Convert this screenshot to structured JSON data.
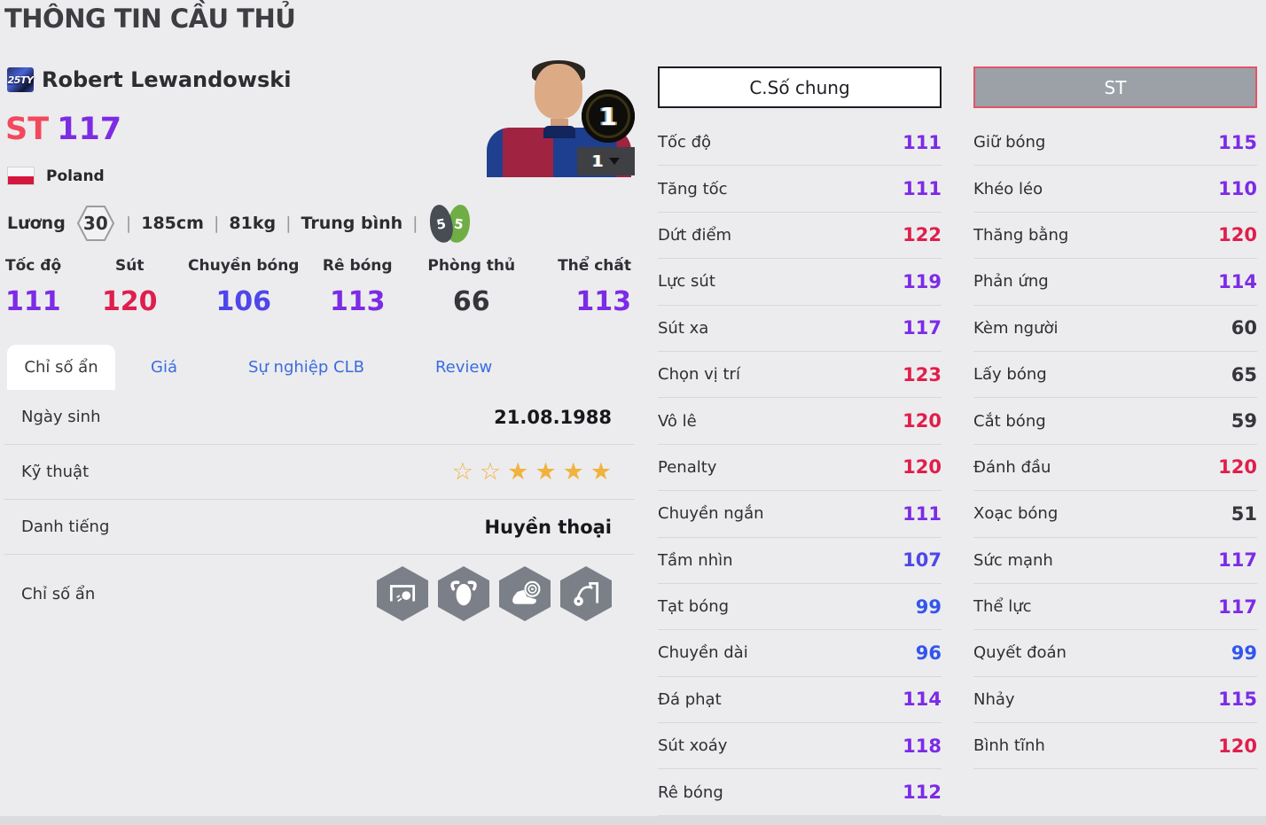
{
  "page": {
    "title": "THÔNG TIN CẦU THỦ"
  },
  "player": {
    "season_badge": "25TY",
    "name": "Robert Lewandowski",
    "position": "ST",
    "ovr": "117",
    "nation": "Poland",
    "salary_label": "Lương",
    "salary": "30",
    "height": "185cm",
    "weight": "81kg",
    "body_type": "Trung bình",
    "weak_foot_left": "5",
    "weak_foot_right": "5",
    "level_badge": "1",
    "level_selected": "1"
  },
  "colors": {
    "tier_red": "#e01e4c",
    "tier_purple": "#7c2be6",
    "tier_indigo": "#4f46ea",
    "tier_blue": "#3355ee",
    "tier_dark": "#35353b",
    "star_gold": "#f1b33e",
    "tab_link_blue": "#3a6ce0",
    "position_red": "#f2495d",
    "ovr_purple": "#7d2ce4"
  },
  "summary_stats": [
    {
      "label": "Tốc độ",
      "value": "111",
      "color": "#7c2be6"
    },
    {
      "label": "Sút",
      "value": "120",
      "color": "#e01e4c"
    },
    {
      "label": "Chuyền bóng",
      "value": "106",
      "color": "#4f46ea"
    },
    {
      "label": "Rê bóng",
      "value": "113",
      "color": "#7c2be6"
    },
    {
      "label": "Phòng thủ",
      "value": "66",
      "color": "#35353b"
    },
    {
      "label": "Thể chất",
      "value": "113",
      "color": "#7c2be6"
    }
  ],
  "tabs": [
    {
      "label": "Chỉ số ẩn",
      "active": true
    },
    {
      "label": "Giá",
      "active": false
    },
    {
      "label": "Sự nghiệp CLB",
      "active": false
    },
    {
      "label": "Review",
      "active": false
    }
  ],
  "info_rows": {
    "birth": {
      "label": "Ngày sinh",
      "value": "21.08.1988"
    },
    "skill": {
      "label": "Kỹ thuật",
      "stars_empty": 2,
      "stars_filled": 4
    },
    "fame": {
      "label": "Danh tiếng",
      "value": "Huyền thoại"
    },
    "hidden": {
      "label": "Chỉ số ẩn",
      "badges": [
        "goal-poacher",
        "bull-strength",
        "accurate-shot",
        "chip-shot"
      ]
    }
  },
  "stat_panel": {
    "general_button": "C.Số chung",
    "position_button": "ST",
    "general": [
      {
        "label": "Tốc độ",
        "value": "111",
        "color": "#7c2be6"
      },
      {
        "label": "Tăng tốc",
        "value": "111",
        "color": "#7c2be6"
      },
      {
        "label": "Dứt điểm",
        "value": "122",
        "color": "#e01e4c"
      },
      {
        "label": "Lực sút",
        "value": "119",
        "color": "#7c2be6"
      },
      {
        "label": "Sút xa",
        "value": "117",
        "color": "#7c2be6"
      },
      {
        "label": "Chọn vị trí",
        "value": "123",
        "color": "#e01e4c"
      },
      {
        "label": "Vô lê",
        "value": "120",
        "color": "#e01e4c"
      },
      {
        "label": "Penalty",
        "value": "120",
        "color": "#e01e4c"
      },
      {
        "label": "Chuyền ngắn",
        "value": "111",
        "color": "#7c2be6"
      },
      {
        "label": "Tầm nhìn",
        "value": "107",
        "color": "#4f46ea"
      },
      {
        "label": "Tạt bóng",
        "value": "99",
        "color": "#3355ee"
      },
      {
        "label": "Chuyền dài",
        "value": "96",
        "color": "#3355ee"
      },
      {
        "label": "Đá phạt",
        "value": "114",
        "color": "#7c2be6"
      },
      {
        "label": "Sút xoáy",
        "value": "118",
        "color": "#7c2be6"
      },
      {
        "label": "Rê bóng",
        "value": "112",
        "color": "#7c2be6"
      }
    ],
    "position": [
      {
        "label": "Giữ bóng",
        "value": "115",
        "color": "#7c2be6"
      },
      {
        "label": "Khéo léo",
        "value": "110",
        "color": "#7c2be6"
      },
      {
        "label": "Thăng bằng",
        "value": "120",
        "color": "#e01e4c"
      },
      {
        "label": "Phản ứng",
        "value": "114",
        "color": "#7c2be6"
      },
      {
        "label": "Kèm người",
        "value": "60",
        "color": "#35353b"
      },
      {
        "label": "Lấy bóng",
        "value": "65",
        "color": "#35353b"
      },
      {
        "label": "Cắt bóng",
        "value": "59",
        "color": "#35353b"
      },
      {
        "label": "Đánh đầu",
        "value": "120",
        "color": "#e01e4c"
      },
      {
        "label": "Xoạc bóng",
        "value": "51",
        "color": "#35353b"
      },
      {
        "label": "Sức mạnh",
        "value": "117",
        "color": "#7c2be6"
      },
      {
        "label": "Thể lực",
        "value": "117",
        "color": "#7c2be6"
      },
      {
        "label": "Quyết đoán",
        "value": "99",
        "color": "#3355ee"
      },
      {
        "label": "Nhảy",
        "value": "115",
        "color": "#7c2be6"
      },
      {
        "label": "Bình tĩnh",
        "value": "120",
        "color": "#e01e4c"
      }
    ]
  }
}
